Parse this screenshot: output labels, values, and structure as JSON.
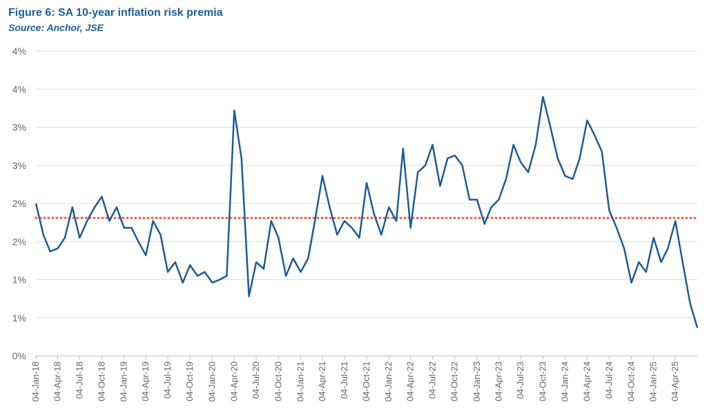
{
  "chart_data": {
    "type": "line",
    "title": "Figure 6: SA 10-year inflation risk premia",
    "subtitle": "Source: Anchor, JSE",
    "x": [
      "04-Jan-18",
      "04-Feb-18",
      "04-Mar-18",
      "04-Apr-18",
      "04-May-18",
      "04-Jun-18",
      "04-Jul-18",
      "04-Aug-18",
      "04-Sep-18",
      "04-Oct-18",
      "04-Nov-18",
      "04-Dec-18",
      "04-Jan-19",
      "04-Feb-19",
      "04-Mar-19",
      "04-Apr-19",
      "04-May-19",
      "04-Jun-19",
      "04-Jul-19",
      "04-Aug-19",
      "04-Sep-19",
      "04-Oct-19",
      "04-Nov-19",
      "04-Dec-19",
      "04-Jan-20",
      "04-Feb-20",
      "04-Mar-20",
      "04-Apr-20",
      "04-May-20",
      "04-Jun-20",
      "04-Jul-20",
      "04-Aug-20",
      "04-Sep-20",
      "04-Oct-20",
      "04-Nov-20",
      "04-Dec-20",
      "04-Jan-21",
      "04-Feb-21",
      "04-Mar-21",
      "04-Apr-21",
      "04-May-21",
      "04-Jun-21",
      "04-Jul-21",
      "04-Aug-21",
      "04-Sep-21",
      "04-Oct-21",
      "04-Nov-21",
      "04-Dec-21",
      "04-Jan-22",
      "04-Feb-22",
      "04-Mar-22",
      "04-Apr-22",
      "04-May-22",
      "04-Jun-22",
      "04-Jul-22",
      "04-Aug-22",
      "04-Sep-22",
      "04-Oct-22",
      "04-Nov-22",
      "04-Dec-22",
      "04-Jan-23",
      "04-Feb-23",
      "04-Mar-23",
      "04-Apr-23",
      "04-May-23",
      "04-Jun-23",
      "04-Jul-23",
      "04-Aug-23",
      "04-Sep-23",
      "04-Oct-23",
      "04-Nov-23",
      "04-Dec-23",
      "04-Jan-24",
      "04-Feb-24",
      "04-Mar-24",
      "04-Apr-24",
      "04-May-24",
      "04-Jun-24",
      "04-Jul-24",
      "04-Aug-24",
      "04-Sep-24",
      "04-Oct-24",
      "04-Nov-24",
      "04-Dec-24",
      "04-Jan-25",
      "04-Feb-25",
      "04-Mar-25",
      "04-Apr-25",
      "04-May-25",
      "04-Jun-25",
      "04-Jul-25"
    ],
    "series": [
      {
        "name": "SA 10-year inflation risk premia",
        "color": "#1f5a8f",
        "values": [
          2.0,
          1.59,
          1.37,
          1.41,
          1.55,
          1.95,
          1.55,
          1.77,
          1.95,
          2.09,
          1.77,
          1.95,
          1.68,
          1.68,
          1.5,
          1.32,
          1.77,
          1.59,
          1.1,
          1.23,
          0.96,
          1.19,
          1.05,
          1.1,
          0.96,
          1.0,
          1.05,
          3.22,
          2.59,
          0.78,
          1.23,
          1.14,
          1.77,
          1.55,
          1.05,
          1.28,
          1.1,
          1.28,
          1.77,
          2.36,
          1.95,
          1.59,
          1.77,
          1.68,
          1.55,
          2.27,
          1.86,
          1.59,
          1.95,
          1.77,
          2.72,
          1.68,
          2.41,
          2.5,
          2.77,
          2.23,
          2.59,
          2.63,
          2.5,
          2.05,
          2.05,
          1.73,
          1.95,
          2.05,
          2.32,
          2.77,
          2.54,
          2.41,
          2.77,
          3.4,
          3.0,
          2.59,
          2.36,
          2.32,
          2.59,
          3.09,
          2.9,
          2.68,
          1.91,
          1.68,
          1.41,
          0.96,
          1.23,
          1.1,
          1.55,
          1.23,
          1.41,
          1.77,
          1.23,
          0.69,
          0.37
        ]
      }
    ],
    "reference_line": {
      "value": 1.81,
      "color": "#e05a3a"
    },
    "xlim": [
      "04-Jan-18",
      "04-Jul-25"
    ],
    "xticks": [
      "04-Jan-18",
      "04-Apr-18",
      "04-Jul-18",
      "04-Oct-18",
      "04-Jan-19",
      "04-Apr-19",
      "04-Jul-19",
      "04-Oct-19",
      "04-Jan-20",
      "04-Apr-20",
      "04-Jul-20",
      "04-Oct-20",
      "04-Jan-21",
      "04-Apr-21",
      "04-Jul-21",
      "04-Oct-21",
      "04-Jan-22",
      "04-Apr-22",
      "04-Jul-22",
      "04-Oct-22",
      "04-Jan-23",
      "04-Apr-23",
      "04-Jul-23",
      "04-Oct-23",
      "04-Jan-24",
      "04-Apr-24",
      "04-Jul-24",
      "04-Oct-24",
      "04-Jan-25",
      "04-Apr-25"
    ],
    "ylim": [
      0,
      4
    ],
    "yticks": [
      {
        "value": 0,
        "label": "0%"
      },
      {
        "value": 0.5,
        "label": "1%"
      },
      {
        "value": 1,
        "label": "1%"
      },
      {
        "value": 1.5,
        "label": "2%"
      },
      {
        "value": 2,
        "label": "2%"
      },
      {
        "value": 2.5,
        "label": "3%"
      },
      {
        "value": 3,
        "label": "3%"
      },
      {
        "value": 3.5,
        "label": "4%"
      },
      {
        "value": 4,
        "label": "4%"
      }
    ],
    "grid": true
  }
}
